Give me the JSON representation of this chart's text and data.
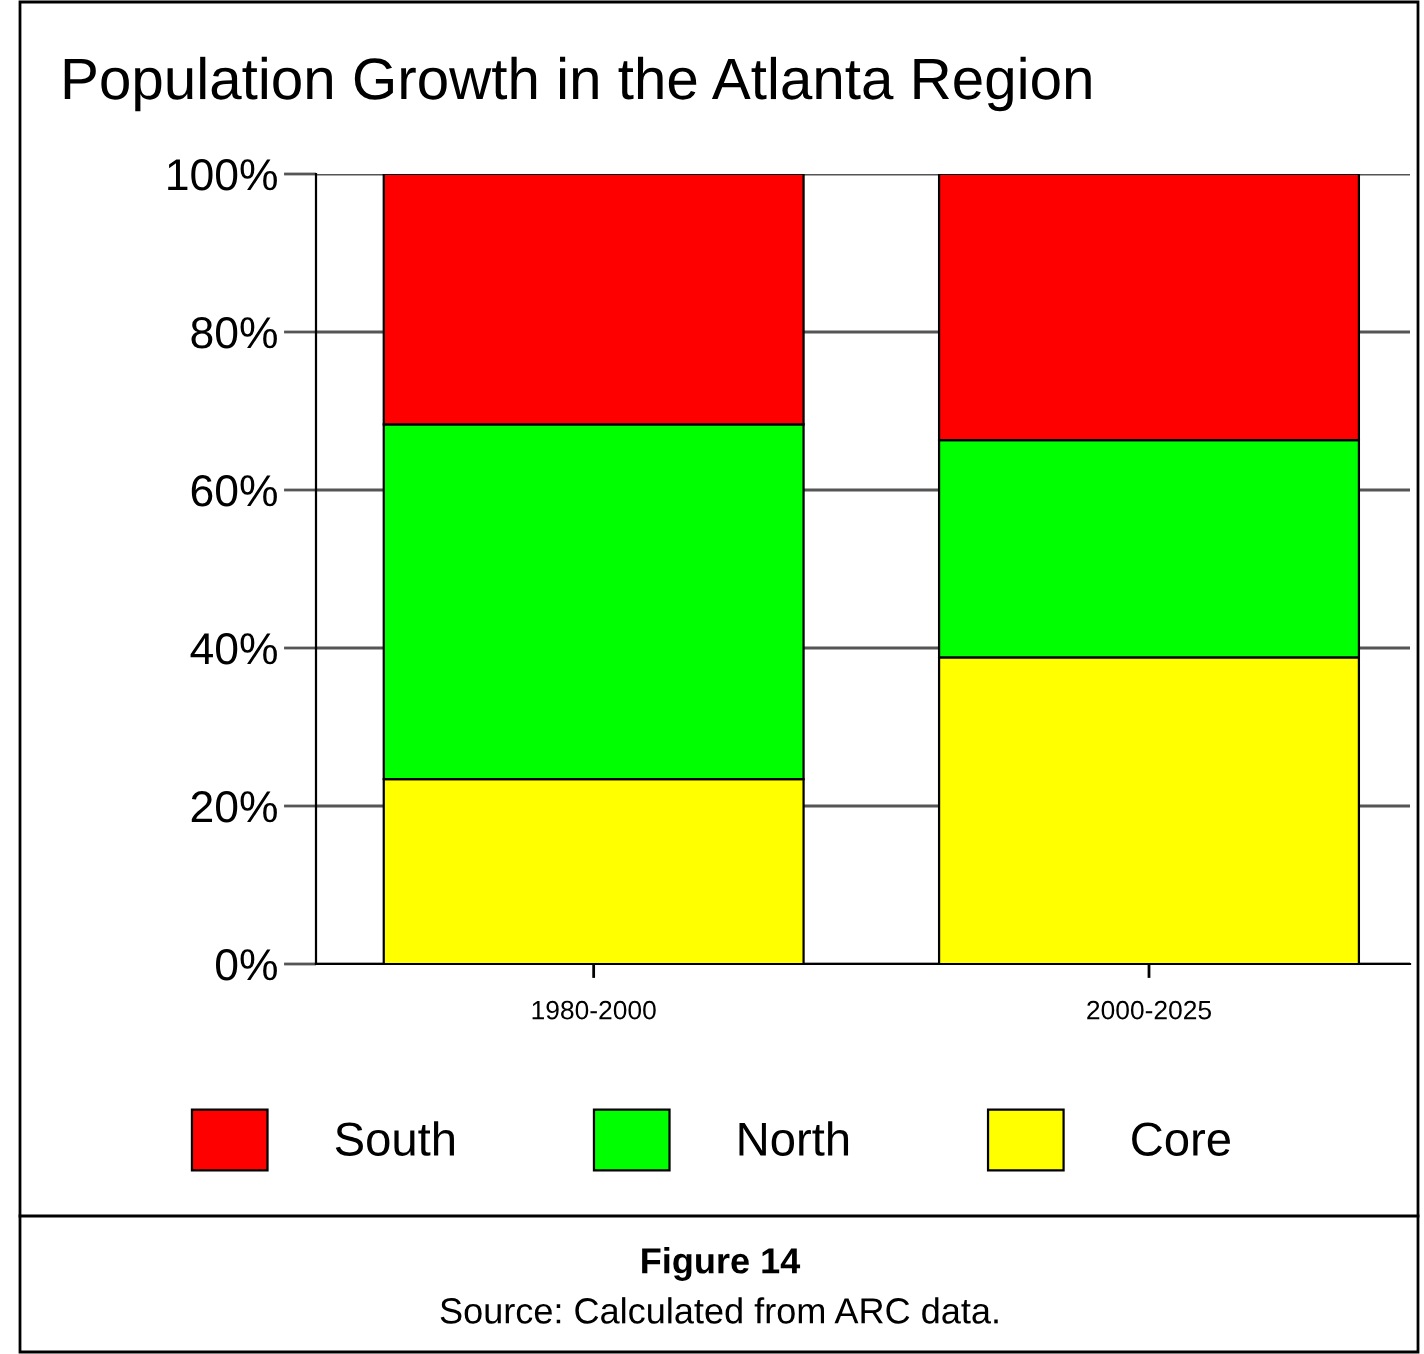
{
  "chart_data": {
    "type": "bar",
    "stacked": true,
    "title": "Population Growth in the Atlanta Region",
    "categories": [
      "1980-2000",
      "2000-2025"
    ],
    "series": [
      {
        "name": "Core",
        "color": "#ffff00",
        "values": [
          23.4,
          38.8
        ]
      },
      {
        "name": "North",
        "color": "#00ff00",
        "values": [
          44.9,
          27.5
        ]
      },
      {
        "name": "South",
        "color": "#ff0000",
        "values": [
          31.7,
          33.7
        ]
      }
    ],
    "ylim": [
      0,
      100
    ],
    "yticks": [
      {
        "value": 0,
        "label": "0%"
      },
      {
        "value": 20,
        "label": "20%"
      },
      {
        "value": 40,
        "label": "40%"
      },
      {
        "value": 60,
        "label": "60%"
      },
      {
        "value": 80,
        "label": "80%"
      },
      {
        "value": 100,
        "label": "100%"
      }
    ],
    "grid": "y",
    "legend": "bottom",
    "annotations": [
      "Figure 14",
      "Source: Calculated from ARC data."
    ]
  }
}
